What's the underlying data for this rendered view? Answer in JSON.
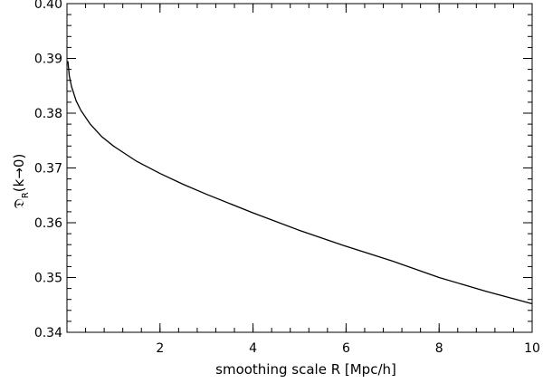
{
  "chart_data": {
    "type": "line",
    "title": "",
    "xlabel": "smoothing scale R [Mpc/h]",
    "ylabel": {
      "symbol": "𝔇",
      "subscript": "R",
      "argument": "(k→0)"
    },
    "xlim": [
      0,
      10
    ],
    "ylim": [
      0.34,
      0.4
    ],
    "x_major_ticks": [
      2,
      4,
      6,
      8,
      10
    ],
    "x_tick_labels": [
      "2",
      "4",
      "6",
      "8",
      "10"
    ],
    "x_minor_step": 0.4,
    "y_major_ticks": [
      0.34,
      0.35,
      0.36,
      0.37,
      0.38,
      0.39,
      0.4
    ],
    "y_tick_labels": [
      "0.34",
      "0.35",
      "0.36",
      "0.37",
      "0.38",
      "0.39",
      "0.40"
    ],
    "y_minor_step": 0.002,
    "grid": false,
    "legend": "none",
    "line_color": "#000000",
    "series": [
      {
        "x": [
          0.02,
          0.05,
          0.1,
          0.2,
          0.3,
          0.5,
          0.75,
          1.0,
          1.5,
          2.0,
          2.5,
          3.0,
          4.0,
          5.0,
          6.0,
          7.0,
          8.0,
          9.0,
          10.0
        ],
        "y": [
          0.3895,
          0.3868,
          0.3848,
          0.3822,
          0.3805,
          0.378,
          0.3757,
          0.374,
          0.3712,
          0.369,
          0.367,
          0.3652,
          0.3618,
          0.3586,
          0.3557,
          0.353,
          0.35,
          0.3475,
          0.3452
        ]
      }
    ]
  }
}
